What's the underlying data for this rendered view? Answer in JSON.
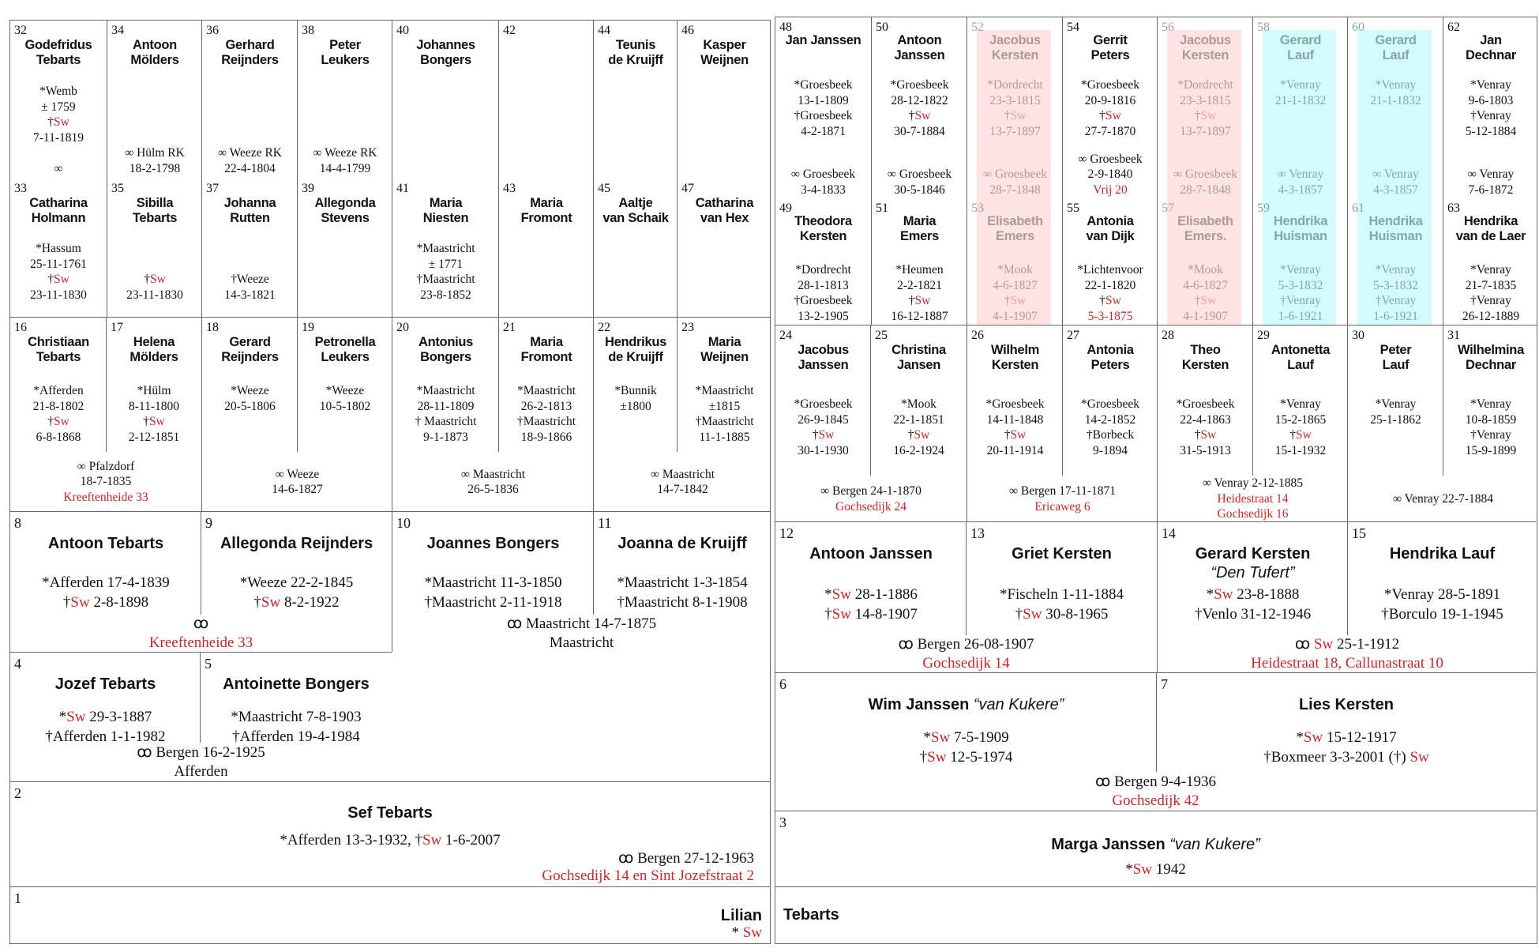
{
  "left": {
    "gen5": [
      {
        "top": {
          "n": "32",
          "name": [
            "Godefridus",
            "Tebarts"
          ],
          "lines": [
            "*Wemb",
            "± 1759",
            "†{Sw}",
            "7-11-1819"
          ]
        },
        "marriage": [
          "∞"
        ],
        "bottom": {
          "n": "33",
          "name": [
            "Catharina",
            "Holmann"
          ],
          "lines": [
            "*Hassum",
            "25-11-1761",
            "†{Sw}",
            "23-11-1830"
          ]
        }
      },
      {
        "top": {
          "n": "34",
          "name": [
            "Antoon",
            "Mölders"
          ],
          "lines": []
        },
        "marriage": [
          "∞ Hülm RK",
          "18-2-1798"
        ],
        "bottom": {
          "n": "35",
          "name": [
            "Sibilla",
            "Tebarts"
          ],
          "lines": [
            "†{Sw}",
            "23-11-1830"
          ]
        }
      },
      {
        "top": {
          "n": "36",
          "name": [
            "Gerhard",
            "Reijnders"
          ],
          "lines": []
        },
        "marriage": [
          "∞ Weeze RK",
          "22-4-1804"
        ],
        "bottom": {
          "n": "37",
          "name": [
            "Johanna",
            "Rutten"
          ],
          "lines": [
            "†Weeze",
            "14-3-1821"
          ]
        }
      },
      {
        "top": {
          "n": "38",
          "name": [
            "Peter",
            "Leukers"
          ],
          "lines": []
        },
        "marriage": [
          "∞ Weeze RK",
          "14-4-1799"
        ],
        "bottom": {
          "n": "39",
          "name": [
            "Allegonda",
            "Stevens"
          ],
          "lines": []
        }
      },
      {
        "top": {
          "n": "40",
          "name": [
            "Johannes",
            "Bongers"
          ],
          "lines": []
        },
        "marriage": [],
        "bottom": {
          "n": "41",
          "name": [
            "Maria",
            "Niesten"
          ],
          "lines": [
            "*Maastricht",
            "± 1771",
            "†Maastricht",
            "23-8-1852"
          ]
        }
      },
      {
        "top": {
          "n": "42",
          "name": [],
          "lines": []
        },
        "marriage": [],
        "bottom": {
          "n": "43",
          "name": [
            "Maria",
            "Fromont"
          ],
          "lines": []
        }
      },
      {
        "top": {
          "n": "44",
          "name": [
            "Teunis",
            "de Kruijff"
          ],
          "lines": []
        },
        "marriage": [],
        "bottom": {
          "n": "45",
          "name": [
            "Aaltje",
            "van Schaik"
          ],
          "lines": []
        }
      },
      {
        "top": {
          "n": "46",
          "name": [
            "Kasper",
            "Weijnen"
          ],
          "lines": []
        },
        "marriage": [],
        "bottom": {
          "n": "47",
          "name": [
            "Catharina",
            "van Hex"
          ],
          "lines": []
        }
      }
    ],
    "gen4": [
      {
        "a": {
          "n": "16",
          "name": [
            "Christiaan",
            "Tebarts"
          ],
          "lines": [
            "*Afferden",
            "21-8-1802",
            "†{Sw}",
            "6-8-1868"
          ]
        },
        "b": {
          "n": "17",
          "name": [
            "Helena",
            "Mölders"
          ],
          "lines": [
            "*Hülm",
            "8-11-1800",
            "†{Sw}",
            "2-12-1851"
          ]
        },
        "marriage": [
          "∞ Pfalzdorf",
          "18-7-1835",
          "{Kreeftenheide 33}"
        ]
      },
      {
        "a": {
          "n": "18",
          "name": [
            "Gerard",
            "Reijnders"
          ],
          "lines": [
            "*Weeze",
            "20-5-1806"
          ]
        },
        "b": {
          "n": "19",
          "name": [
            "Petronella",
            "Leukers"
          ],
          "lines": [
            "*Weeze",
            "10-5-1802"
          ]
        },
        "marriage": [
          "∞ Weeze",
          "14-6-1827"
        ]
      },
      {
        "a": {
          "n": "20",
          "name": [
            "Antonius",
            "Bongers"
          ],
          "lines": [
            "*Maastricht",
            "28-11-1809",
            "† Maastricht",
            "9-1-1873"
          ]
        },
        "b": {
          "n": "21",
          "name": [
            "Maria",
            "Fromont"
          ],
          "lines": [
            "*Maastricht",
            "26-2-1813",
            "†Maastricht",
            "18-9-1866"
          ]
        },
        "marriage": [
          "∞ Maastricht",
          "26-5-1836"
        ]
      },
      {
        "a": {
          "n": "22",
          "name": [
            "Hendrikus",
            "de Kruijff"
          ],
          "lines": [
            "*Bunnik",
            "±1800"
          ]
        },
        "b": {
          "n": "23",
          "name": [
            "Maria",
            "Weijnen"
          ],
          "lines": [
            "*Maastricht",
            "±1815",
            "†Maastricht",
            "11-1-1885"
          ]
        },
        "marriage": [
          "∞ Maastricht",
          "14-7-1842"
        ]
      }
    ],
    "gen3": [
      {
        "a": {
          "n": "8",
          "name": [
            "Antoon Tebarts"
          ],
          "lines": [
            "*Afferden 17-4-1839",
            "†{Sw} 2-8-1898"
          ]
        },
        "b": {
          "n": "9",
          "name": [
            "Allegonda Reijnders"
          ],
          "lines": [
            "*Weeze 22-2-1845",
            "†{Sw} 8-2-1922"
          ]
        },
        "marriage": [
          "ꝏ",
          "{Kreeftenheide 33}"
        ]
      },
      {
        "a": {
          "n": "10",
          "name": [
            "Joannes Bongers"
          ],
          "lines": [
            "*Maastricht 11-3-1850",
            "†Maastricht 2-11-1918"
          ]
        },
        "b": {
          "n": "11",
          "name": [
            "Joanna de Kruijff"
          ],
          "lines": [
            "*Maastricht 1-3-1854",
            "†Maastricht 8-1-1908"
          ]
        },
        "marriage": [
          "ꝏ  Maastricht 14-7-1875",
          "Maastricht"
        ]
      }
    ],
    "gen2": {
      "a": {
        "n": "4",
        "name": [
          "Jozef Tebarts"
        ],
        "lines": [
          "*{Sw} 29-3-1887",
          "†Afferden 1-1-1982"
        ]
      },
      "b": {
        "n": "5",
        "name": [
          "Antoinette Bongers"
        ],
        "lines": [
          "*Maastricht 7-8-1903",
          "†Afferden 19-4-1984"
        ]
      },
      "marriage": [
        "ꝏ Bergen 16-2-1925",
        "Afferden"
      ]
    },
    "gen1": {
      "n": "2",
      "name": "Sef Tebarts",
      "line": "*Afferden 13-3-1932, †{Sw} 1-6-2007",
      "marriage": [
        "ꝏ Bergen 27-12-1963",
        "{Gochsedijk 14 en Sint Jozefstraat 2}"
      ]
    },
    "self": {
      "n": "1",
      "name": "Lilian",
      "line": "* {Sw}"
    }
  },
  "right": {
    "gen5": [
      {
        "top": {
          "n": "48",
          "name": [
            "Jan Janssen"
          ],
          "lines": [
            "*Groesbeek",
            "13-1-1809",
            "†Groesbeek",
            "4-2-1871"
          ]
        },
        "marriage": [
          "∞ Groesbeek",
          "3-4-1833"
        ],
        "bottom": {
          "n": "49",
          "name": [
            "Theodora",
            "Kersten"
          ],
          "lines": [
            "*Dordrecht",
            "28-1-1813",
            "†Groesbeek",
            "13-2-1905"
          ]
        }
      },
      {
        "top": {
          "n": "50",
          "name": [
            "Antoon",
            "Janssen"
          ],
          "lines": [
            "*Groesbeek",
            "28-12-1822",
            "†{Sw}",
            "30-7-1884"
          ]
        },
        "marriage": [
          "∞ Groesbeek",
          "30-5-1846"
        ],
        "bottom": {
          "n": "51",
          "name": [
            "Maria",
            "Emers"
          ],
          "lines": [
            "*Heumen",
            "2-2-1821",
            "†{Sw}",
            "16-12-1887"
          ]
        }
      },
      {
        "shade": "pink",
        "top": {
          "n": "52",
          "name": [
            "Jacobus",
            "Kersten"
          ],
          "lines": [
            "*Dordrecht",
            "23-3-1815",
            "†{Sw}",
            "13-7-1897"
          ]
        },
        "marriage": [
          "∞  Groesbeek",
          "28-7-1848"
        ],
        "bottom": {
          "n": "53",
          "name": [
            "Elisabeth",
            "Emers"
          ],
          "lines": [
            "*Mook",
            "4-6-1827",
            "†{Sw}",
            "4-1-1907"
          ]
        }
      },
      {
        "top": {
          "n": "54",
          "name": [
            "Gerrit",
            "Peters"
          ],
          "lines": [
            "*Groesbeek",
            "20-9-1816",
            "†{Sw}",
            "27-7-1870"
          ]
        },
        "marriage": [
          "∞  Groesbeek",
          "2-9-1840",
          "{Vrij 20}"
        ],
        "bottom": {
          "n": "55",
          "name": [
            "Antonia",
            "van Dijk"
          ],
          "lines": [
            "*Lichtenvoor",
            "22-1-1820",
            "†{Sw}",
            "{5-3-1875}"
          ]
        }
      },
      {
        "shade": "pink",
        "top": {
          "n": "56",
          "name": [
            "Jacobus",
            "Kersten"
          ],
          "lines": [
            "*Dordrecht",
            "23-3-1815",
            "†{Sw}",
            "13-7-1897"
          ]
        },
        "marriage": [
          "∞  Groesbeek",
          "28-7-1848"
        ],
        "bottom": {
          "n": "57",
          "name": [
            "Elisabeth",
            "Emers."
          ],
          "lines": [
            "*Mook",
            "4-6-1827",
            "†{Sw}",
            "4-1-1907"
          ]
        }
      },
      {
        "shade": "cyan",
        "top": {
          "n": "58",
          "name": [
            "Gerard",
            "Lauf"
          ],
          "lines": [
            "*Venray",
            "21-1-1832"
          ]
        },
        "marriage": [
          "∞ Venray",
          "4-3-1857"
        ],
        "bottom": {
          "n": "59",
          "name": [
            "Hendrika",
            "Huisman"
          ],
          "lines": [
            "*Venray",
            "5-3-1832",
            "†Venray",
            "1-6-1921"
          ]
        }
      },
      {
        "shade": "cyan",
        "top": {
          "n": "60",
          "name": [
            "Gerard",
            "Lauf"
          ],
          "lines": [
            "*Venray",
            "21-1-1832"
          ]
        },
        "marriage": [
          "∞ Venray",
          "4-3-1857"
        ],
        "bottom": {
          "n": "61",
          "name": [
            "Hendrika",
            "Huisman"
          ],
          "lines": [
            "*Venray",
            "5-3-1832",
            "†Venray",
            "1-6-1921"
          ]
        }
      },
      {
        "top": {
          "n": "62",
          "name": [
            "Jan",
            "Dechnar"
          ],
          "lines": [
            "*Venray",
            "9-6-1803",
            "†Venray",
            "5-12-1884"
          ]
        },
        "marriage": [
          "∞ Venray",
          "7-6-1872"
        ],
        "bottom": {
          "n": "63",
          "name": [
            "Hendrika",
            "van de Laer"
          ],
          "lines": [
            "*Venray",
            "21-7-1835",
            "†Venray",
            "26-12-1889"
          ]
        }
      }
    ],
    "gen4": [
      {
        "a": {
          "n": "24",
          "name": [
            "Jacobus",
            "Janssen"
          ],
          "lines": [
            "*Groesbeek",
            "26-9-1845",
            "†{Sw}",
            "30-1-1930"
          ]
        },
        "b": {
          "n": "25",
          "name": [
            "Christina",
            "Jansen"
          ],
          "lines": [
            "*Mook",
            "22-1-1851",
            "†{Sw}",
            "16-2-1924"
          ]
        },
        "marriage": [
          "∞ Bergen 24-1-1870",
          "{Gochsedijk 24}"
        ]
      },
      {
        "a": {
          "n": "26",
          "name": [
            "Wilhelm",
            "Kersten"
          ],
          "lines": [
            "*Groesbeek",
            "14-11-1848",
            "†{Sw}",
            "20-11-1914"
          ]
        },
        "b": {
          "n": "27",
          "name": [
            "Antonia",
            "Peters"
          ],
          "lines": [
            "*Groesbeek",
            "14-2-1852",
            "†Borbeck",
            "9-1894"
          ]
        },
        "marriage": [
          "∞ Bergen 17-11-1871",
          "{Ericaweg 6}"
        ]
      },
      {
        "a": {
          "n": "28",
          "name": [
            "Theo",
            "Kersten"
          ],
          "lines": [
            "*Groesbeek",
            "22-4-1863",
            "†{Sw}",
            "31-5-1913"
          ]
        },
        "b": {
          "n": "29",
          "name": [
            "Antonetta",
            "Lauf"
          ],
          "lines": [
            "*Venray",
            "15-2-1865",
            "†{Sw}",
            "15-1-1932"
          ]
        },
        "marriage": [
          "∞ Venray 2-12-1885",
          "{Heidestraat 14}",
          "{Gochsedijk 16}"
        ]
      },
      {
        "a": {
          "n": "30",
          "name": [
            "Peter",
            "Lauf"
          ],
          "lines": [
            "*Venray",
            "25-1-1862"
          ]
        },
        "b": {
          "n": "31",
          "name": [
            "Wilhelmina",
            "Dechnar"
          ],
          "lines": [
            "*Venray",
            "10-8-1859",
            "†Venray",
            "15-9-1899"
          ]
        },
        "marriage": [
          "∞ Venray 22-7-1884"
        ]
      }
    ],
    "gen3": [
      {
        "a": {
          "n": "12",
          "name": [
            "Antoon Janssen"
          ],
          "lines": [
            "*{Sw} 28-1-1886",
            "†{Sw} 14-8-1907"
          ]
        },
        "b": {
          "n": "13",
          "name": [
            "Griet Kersten"
          ],
          "lines": [
            "*Fischeln 1-11-1884",
            "†{Sw} 30-8-1965"
          ]
        },
        "marriage": [
          "ꝏ Bergen 26-08-1907",
          "{Gochsedijk 14}"
        ]
      },
      {
        "a": {
          "n": "14",
          "name": [
            "Gerard Kersten"
          ],
          "nick": "“Den Tufert”",
          "lines": [
            "*{Sw} 23-8-1888",
            "†Venlo 31-12-1946"
          ]
        },
        "b": {
          "n": "15",
          "name": [
            "Hendrika Lauf"
          ],
          "lines": [
            "*Venray 28-5-1891",
            "†Borculo 19-1-1945"
          ]
        },
        "marriage": [
          "ꝏ {Sw} 25-1-1912",
          "{Heidestraat 18, Callunastraat 10}"
        ]
      }
    ],
    "gen2": {
      "a": {
        "n": "6",
        "name": [
          "Wim Janssen"
        ],
        "inlineNick": "“van Kukere”",
        "lines": [
          "*{Sw} 7-5-1909",
          "†{Sw} 12-5-1974"
        ]
      },
      "b": {
        "n": "7",
        "name": [
          "Lies Kersten"
        ],
        "lines": [
          "*{Sw} 15-12-1917",
          "†Boxmeer 3-3-2001  (†) {Sw}"
        ]
      },
      "marriage": [
        "ꝏ Bergen 9-4-1936",
        "{Gochsedijk 42}"
      ]
    },
    "gen1": {
      "n": "3",
      "name": "Marga Janssen",
      "inlineNick": "“van Kukere”",
      "line": "*{Sw} 1942"
    },
    "self": {
      "name": "Tebarts"
    }
  },
  "colors": {
    "red": "#c0282d",
    "pink_shade": "#fde3e5",
    "cyan_shade": "#d3fbfc",
    "border": "#666666"
  }
}
